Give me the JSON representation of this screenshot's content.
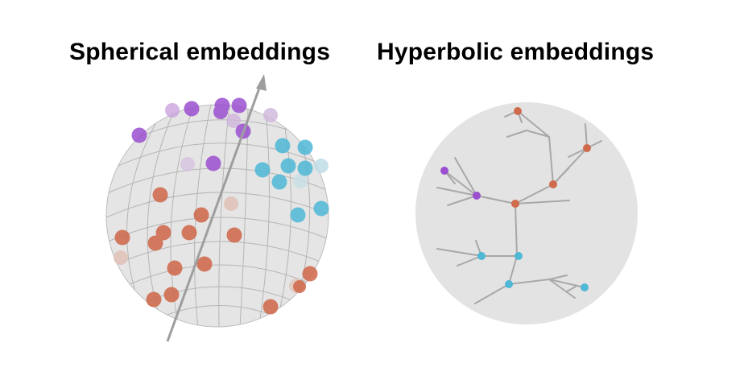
{
  "titles": {
    "spherical": "Spherical embeddings",
    "hyperbolic": "Hyperbolic embeddings"
  },
  "colors": {
    "purple": "#9b4fd0",
    "blue": "#4fb8d6",
    "orange": "#cf6a4c",
    "sphere_fill": "#e5e5e5",
    "grid": "#b3b3b3",
    "axis": "#999999",
    "disk_fill": "#e3e3e3",
    "branch": "#a8a8a8"
  }
}
